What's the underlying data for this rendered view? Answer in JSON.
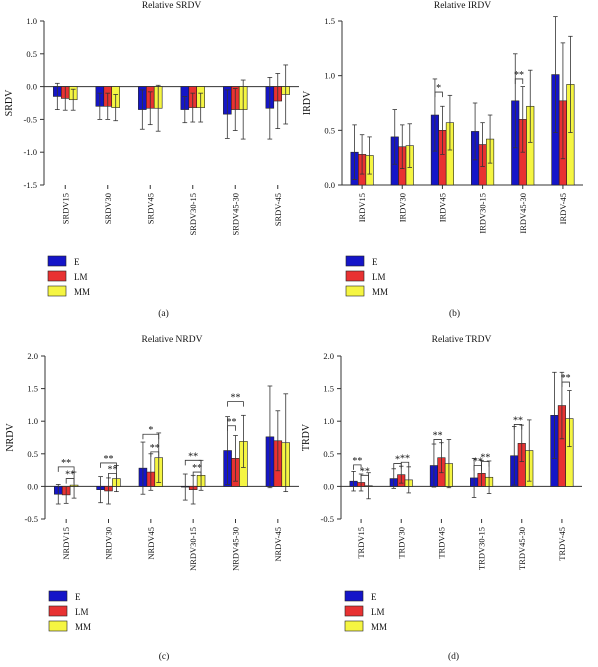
{
  "colors": {
    "E": "#1515c8",
    "LM": "#e83232",
    "MM": "#f5f542",
    "axis": "#333333"
  },
  "chart_data": [
    {
      "id": "a",
      "panel_label": "(a)",
      "type": "bar",
      "title": "Relative SRDV",
      "ylabel": "SRDV",
      "ylim": [
        -1.5,
        1.0
      ],
      "yticks": [
        -1.5,
        -1.0,
        -0.5,
        0.0,
        0.5,
        1.0
      ],
      "ytick_labels": [
        "-1.5",
        "-1.0",
        "-0.5",
        "0.0",
        "0.5",
        "1.0"
      ],
      "categories": [
        "SRDV15",
        "SRDV30",
        "SRDV45",
        "SRDV30-15",
        "SRDV45-30",
        "SRDV-45"
      ],
      "legend": [
        "E",
        "LM",
        "MM"
      ],
      "series": [
        {
          "name": "E",
          "values": [
            -0.15,
            -0.3,
            -0.35,
            -0.35,
            -0.42,
            -0.33
          ],
          "errors": [
            0.2,
            0.2,
            0.3,
            0.2,
            0.37,
            0.47
          ]
        },
        {
          "name": "LM",
          "values": [
            -0.18,
            -0.3,
            -0.33,
            -0.32,
            -0.35,
            -0.22
          ],
          "errors": [
            0.18,
            0.2,
            0.25,
            0.22,
            0.32,
            0.42
          ]
        },
        {
          "name": "MM",
          "values": [
            -0.2,
            -0.32,
            -0.33,
            -0.32,
            -0.35,
            -0.12
          ],
          "errors": [
            0.16,
            0.2,
            0.35,
            0.22,
            0.45,
            0.45
          ]
        }
      ],
      "brackets": []
    },
    {
      "id": "b",
      "panel_label": "(b)",
      "type": "bar",
      "title": "Relative IRDV",
      "ylabel": "IRDV",
      "ylim": [
        0.0,
        1.5
      ],
      "yticks": [
        0.0,
        0.5,
        1.0,
        1.5
      ],
      "ytick_labels": [
        "0.0",
        "0.5",
        "1.0",
        "1.5"
      ],
      "categories": [
        "IRDV15",
        "IRDV30",
        "IRDV45",
        "IRDV30-15",
        "IRDV45-30",
        "IRDV-45"
      ],
      "legend": [
        "E",
        "LM",
        "MM"
      ],
      "series": [
        {
          "name": "E",
          "values": [
            0.3,
            0.44,
            0.64,
            0.49,
            0.77,
            1.01
          ],
          "errors": [
            0.25,
            0.25,
            0.33,
            0.26,
            0.43,
            0.53
          ]
        },
        {
          "name": "LM",
          "values": [
            0.28,
            0.35,
            0.5,
            0.37,
            0.6,
            0.77
          ],
          "errors": [
            0.18,
            0.2,
            0.22,
            0.2,
            0.3,
            0.53
          ]
        },
        {
          "name": "MM",
          "values": [
            0.27,
            0.36,
            0.57,
            0.42,
            0.72,
            0.92
          ],
          "errors": [
            0.17,
            0.2,
            0.25,
            0.22,
            0.33,
            0.44
          ]
        }
      ],
      "brackets": [
        {
          "cat": 2,
          "s1": 0,
          "s2": 1,
          "y": 0.85,
          "label": "*"
        },
        {
          "cat": 4,
          "s1": 0,
          "s2": 1,
          "y": 0.97,
          "label": "**"
        }
      ]
    },
    {
      "id": "c",
      "panel_label": "(c)",
      "type": "bar",
      "title": "Relative NRDV",
      "ylabel": "NRDV",
      "ylim": [
        -0.5,
        2.0
      ],
      "yticks": [
        -0.5,
        0.0,
        0.5,
        1.0,
        1.5,
        2.0
      ],
      "ytick_labels": [
        "-0.5",
        "0.0",
        "0.5",
        "1.0",
        "1.5",
        "2.0"
      ],
      "categories": [
        "NRDV15",
        "NRDV30",
        "NRDV45",
        "NRDV30-15",
        "NRDV45-30",
        "NRDV-45"
      ],
      "legend": [
        "E",
        "LM",
        "MM"
      ],
      "series": [
        {
          "name": "E",
          "values": [
            -0.12,
            -0.05,
            0.28,
            -0.01,
            0.55,
            0.76
          ],
          "errors": [
            0.15,
            0.2,
            0.4,
            0.2,
            0.52,
            0.78
          ]
        },
        {
          "name": "LM",
          "values": [
            -0.13,
            -0.07,
            0.22,
            -0.05,
            0.43,
            0.7
          ],
          "errors": [
            0.13,
            0.2,
            0.28,
            0.22,
            0.35,
            0.46
          ]
        },
        {
          "name": "MM",
          "values": [
            0.02,
            0.12,
            0.44,
            0.17,
            0.69,
            0.67
          ],
          "errors": [
            0.2,
            0.2,
            0.38,
            0.23,
            0.4,
            0.75
          ]
        }
      ],
      "brackets": [
        {
          "cat": 0,
          "s1": 0,
          "s2": 2,
          "y": 0.3,
          "label": "**"
        },
        {
          "cat": 0,
          "s1": 1,
          "s2": 2,
          "y": 0.12,
          "label": "**"
        },
        {
          "cat": 1,
          "s1": 0,
          "s2": 2,
          "y": 0.36,
          "label": "**"
        },
        {
          "cat": 1,
          "s1": 1,
          "s2": 2,
          "y": 0.2,
          "label": "**"
        },
        {
          "cat": 2,
          "s1": 0,
          "s2": 2,
          "y": 0.8,
          "label": "*"
        },
        {
          "cat": 2,
          "s1": 1,
          "s2": 2,
          "y": 0.53,
          "label": "**"
        },
        {
          "cat": 3,
          "s1": 0,
          "s2": 2,
          "y": 0.4,
          "label": "**"
        },
        {
          "cat": 3,
          "s1": 1,
          "s2": 2,
          "y": 0.22,
          "label": "**"
        },
        {
          "cat": 4,
          "s1": 0,
          "s2": 2,
          "y": 1.3,
          "label": "**"
        },
        {
          "cat": 4,
          "s1": 0,
          "s2": 1,
          "y": 0.93,
          "label": "**"
        }
      ]
    },
    {
      "id": "d",
      "panel_label": "(d)",
      "type": "bar",
      "title": "Relative TRDV",
      "ylabel": "TRDV",
      "ylim": [
        -0.5,
        2.0
      ],
      "yticks": [
        -0.5,
        0.0,
        0.5,
        1.0,
        1.5,
        2.0
      ],
      "ytick_labels": [
        "-0.5",
        "0.0",
        "0.5",
        "1.0",
        "1.5",
        "2.0"
      ],
      "categories": [
        "TRDV15",
        "TRDV30",
        "TRDV45",
        "TRDV30-15",
        "TRDV45-30",
        "TRDV-45"
      ],
      "legend": [
        "E",
        "LM",
        "MM"
      ],
      "series": [
        {
          "name": "E",
          "values": [
            0.08,
            0.12,
            0.32,
            0.13,
            0.47,
            1.09
          ],
          "errors": [
            0.15,
            0.15,
            0.33,
            0.3,
            0.45,
            0.66
          ]
        },
        {
          "name": "LM",
          "values": [
            0.06,
            0.18,
            0.44,
            0.2,
            0.66,
            1.24
          ],
          "errors": [
            0.13,
            0.13,
            0.23,
            0.2,
            0.28,
            0.51
          ]
        },
        {
          "name": "MM",
          "values": [
            0.01,
            0.1,
            0.35,
            0.14,
            0.55,
            1.04
          ],
          "errors": [
            0.2,
            0.2,
            0.37,
            0.25,
            0.47,
            0.43
          ]
        }
      ],
      "brackets": [
        {
          "cat": 0,
          "s1": 0,
          "s2": 1,
          "y": 0.33,
          "label": "**"
        },
        {
          "cat": 0,
          "s1": 1,
          "s2": 2,
          "y": 0.17,
          "label": "**"
        },
        {
          "cat": 1,
          "s1": 0,
          "s2": 1,
          "y": 0.35,
          "label": "*"
        },
        {
          "cat": 1,
          "s1": 1,
          "s2": 2,
          "y": 0.37,
          "label": "**"
        },
        {
          "cat": 2,
          "s1": 0,
          "s2": 1,
          "y": 0.72,
          "label": "**"
        },
        {
          "cat": 3,
          "s1": 0,
          "s2": 1,
          "y": 0.32,
          "label": "**"
        },
        {
          "cat": 3,
          "s1": 1,
          "s2": 2,
          "y": 0.38,
          "label": "**"
        },
        {
          "cat": 4,
          "s1": 0,
          "s2": 1,
          "y": 0.95,
          "label": "**"
        },
        {
          "cat": 5,
          "s1": 1,
          "s2": 2,
          "y": 1.6,
          "label": "**"
        }
      ]
    }
  ]
}
